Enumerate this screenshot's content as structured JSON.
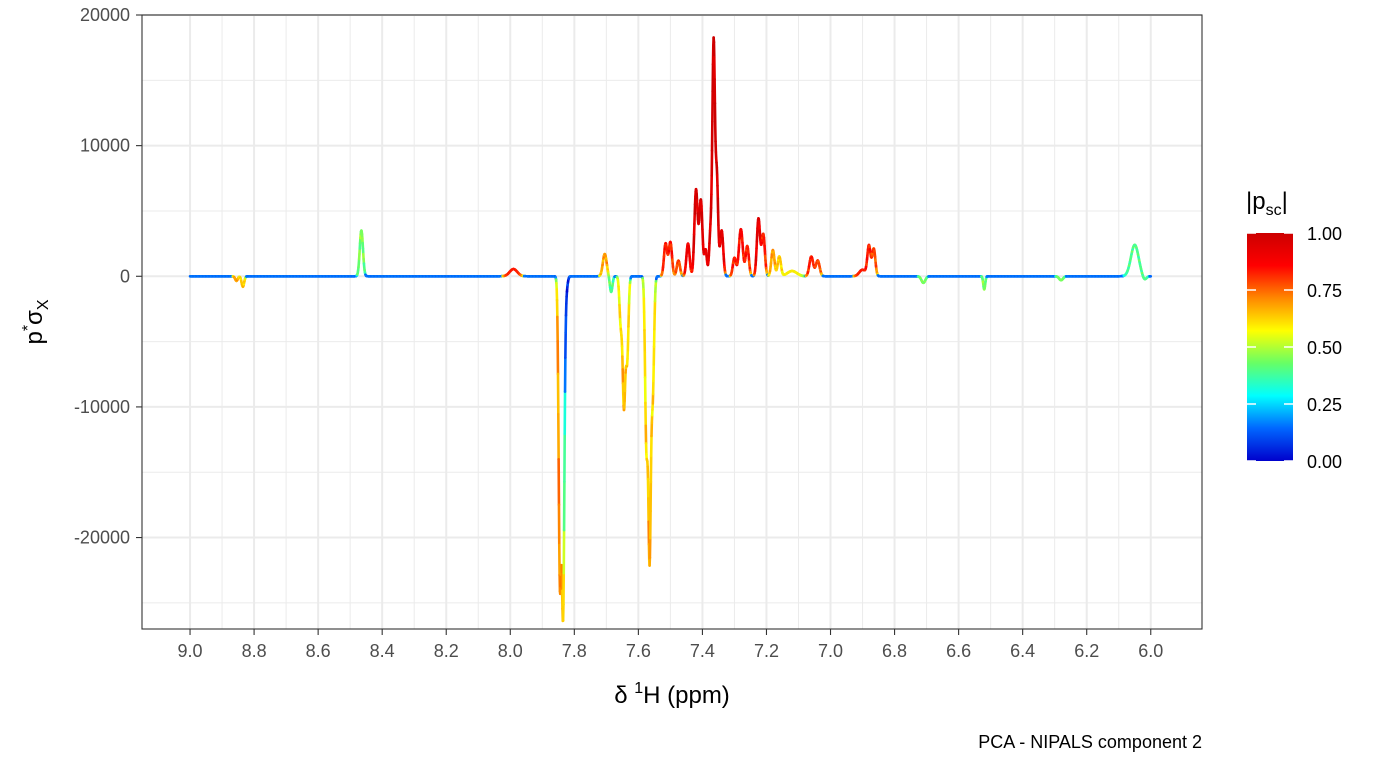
{
  "chart_data": {
    "type": "line",
    "title": "",
    "caption": "PCA - NIPALS component 2",
    "xlabel": {
      "prefix": "δ ",
      "sup": "1",
      "rest": "H (ppm)"
    },
    "ylabel": {
      "base": "p",
      "sup": "*",
      "sigma": "σ",
      "sub": "X"
    },
    "x_reversed": true,
    "xlim": [
      9.15,
      5.84
    ],
    "ylim": [
      -27000,
      20000
    ],
    "x_ticks": [
      9.0,
      8.8,
      8.6,
      8.4,
      8.2,
      8.0,
      7.8,
      7.6,
      7.4,
      7.2,
      7.0,
      6.8,
      6.6,
      6.4,
      6.2,
      6.0
    ],
    "x_tick_labels": [
      "9.0",
      "8.8",
      "8.6",
      "8.4",
      "8.2",
      "8.0",
      "7.8",
      "7.6",
      "7.4",
      "7.2",
      "7.0",
      "6.8",
      "6.6",
      "6.4",
      "6.2",
      "6.0"
    ],
    "y_ticks": [
      -20000,
      -10000,
      0,
      10000,
      20000
    ],
    "y_tick_labels": [
      "-20000",
      "-10000",
      "0",
      "10000",
      "20000"
    ],
    "grid": true,
    "color_scale": {
      "title": {
        "open": "|p",
        "sub": "sc",
        "close": "|"
      },
      "min": 0,
      "max": 1,
      "ticks": [
        0,
        0.25,
        0.5,
        0.75,
        1.0
      ],
      "tick_labels": [
        "0.00",
        "0.25",
        "0.50",
        "0.75",
        "1.00"
      ],
      "colors": [
        "#0000cc",
        "#0066ff",
        "#00ffff",
        "#66ff66",
        "#ffff00",
        "#ff8800",
        "#ff0000",
        "#cc0000"
      ],
      "legend_position": "right"
    },
    "baseline_color_value": 0.15,
    "peaks": [
      {
        "x": 8.855,
        "y": -350,
        "c": 0.7,
        "w": 0.004
      },
      {
        "x": 8.835,
        "y": -800,
        "c": 0.65,
        "w": 0.004
      },
      {
        "x": 8.465,
        "y": 3500,
        "c": 0.45,
        "w": 0.005
      },
      {
        "x": 7.99,
        "y": 550,
        "c": 0.85,
        "w": 0.012
      },
      {
        "x": 7.845,
        "y": -23000,
        "c": 0.72,
        "w": 0.004
      },
      {
        "x": 7.835,
        "y": -25300,
        "c": 0.68,
        "w": 0.004
      },
      {
        "x": 7.825,
        "y": -1000,
        "c": 0.05,
        "w": 0.004
      },
      {
        "x": 7.705,
        "y": 1700,
        "c": 0.7,
        "w": 0.006
      },
      {
        "x": 7.685,
        "y": -1200,
        "c": 0.4,
        "w": 0.004
      },
      {
        "x": 7.655,
        "y": -3600,
        "c": 0.6,
        "w": 0.004
      },
      {
        "x": 7.645,
        "y": -9800,
        "c": 0.68,
        "w": 0.004
      },
      {
        "x": 7.635,
        "y": -6300,
        "c": 0.62,
        "w": 0.004
      },
      {
        "x": 7.575,
        "y": -12700,
        "c": 0.62,
        "w": 0.004
      },
      {
        "x": 7.565,
        "y": -21200,
        "c": 0.68,
        "w": 0.004
      },
      {
        "x": 7.555,
        "y": -8800,
        "c": 0.62,
        "w": 0.004
      },
      {
        "x": 7.515,
        "y": 2500,
        "c": 0.85,
        "w": 0.005
      },
      {
        "x": 7.5,
        "y": 2600,
        "c": 0.85,
        "w": 0.005
      },
      {
        "x": 7.475,
        "y": 1200,
        "c": 0.8,
        "w": 0.005
      },
      {
        "x": 7.445,
        "y": 2500,
        "c": 0.92,
        "w": 0.005
      },
      {
        "x": 7.42,
        "y": 6600,
        "c": 0.98,
        "w": 0.005
      },
      {
        "x": 7.405,
        "y": 5800,
        "c": 0.98,
        "w": 0.005
      },
      {
        "x": 7.39,
        "y": 2000,
        "c": 0.95,
        "w": 0.004
      },
      {
        "x": 7.375,
        "y": 3200,
        "c": 0.97,
        "w": 0.004
      },
      {
        "x": 7.365,
        "y": 17800,
        "c": 1.0,
        "w": 0.004
      },
      {
        "x": 7.355,
        "y": 7500,
        "c": 1.0,
        "w": 0.004
      },
      {
        "x": 7.34,
        "y": 3500,
        "c": 0.95,
        "w": 0.005
      },
      {
        "x": 7.3,
        "y": 1400,
        "c": 0.85,
        "w": 0.005
      },
      {
        "x": 7.28,
        "y": 3600,
        "c": 0.88,
        "w": 0.006
      },
      {
        "x": 7.26,
        "y": 2300,
        "c": 0.85,
        "w": 0.005
      },
      {
        "x": 7.225,
        "y": 4400,
        "c": 0.95,
        "w": 0.005
      },
      {
        "x": 7.21,
        "y": 3200,
        "c": 0.85,
        "w": 0.005
      },
      {
        "x": 7.18,
        "y": 2000,
        "c": 0.7,
        "w": 0.005
      },
      {
        "x": 7.16,
        "y": 1500,
        "c": 0.65,
        "w": 0.005
      },
      {
        "x": 7.12,
        "y": 400,
        "c": 0.6,
        "w": 0.015
      },
      {
        "x": 7.06,
        "y": 1500,
        "c": 0.85,
        "w": 0.006
      },
      {
        "x": 7.04,
        "y": 1200,
        "c": 0.8,
        "w": 0.006
      },
      {
        "x": 6.9,
        "y": 500,
        "c": 0.85,
        "w": 0.01
      },
      {
        "x": 6.88,
        "y": 2300,
        "c": 0.85,
        "w": 0.005
      },
      {
        "x": 6.865,
        "y": 2100,
        "c": 0.8,
        "w": 0.005
      },
      {
        "x": 6.71,
        "y": -500,
        "c": 0.45,
        "w": 0.006
      },
      {
        "x": 6.52,
        "y": -1000,
        "c": 0.45,
        "w": 0.003
      },
      {
        "x": 6.28,
        "y": -300,
        "c": 0.45,
        "w": 0.006
      },
      {
        "x": 6.05,
        "y": 2400,
        "c": 0.4,
        "w": 0.012
      },
      {
        "x": 6.02,
        "y": -300,
        "c": 0.4,
        "w": 0.006
      }
    ]
  }
}
